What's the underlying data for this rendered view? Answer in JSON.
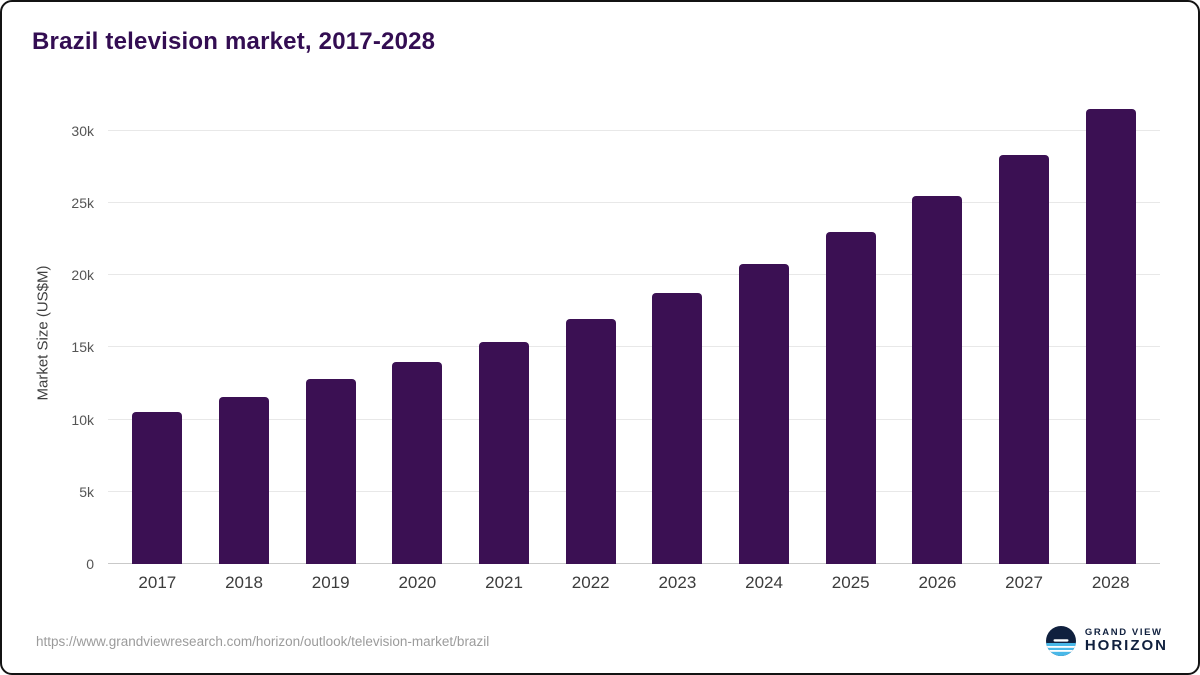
{
  "chart_data": {
    "type": "bar",
    "title": "Brazil television market, 2017-2028",
    "xlabel": "",
    "ylabel": "Market Size (US$M)",
    "categories": [
      "2017",
      "2018",
      "2019",
      "2020",
      "2021",
      "2022",
      "2023",
      "2024",
      "2025",
      "2026",
      "2027",
      "2028"
    ],
    "values": [
      10500,
      11600,
      12800,
      14000,
      15400,
      17000,
      18800,
      20800,
      23000,
      25500,
      28300,
      31500
    ],
    "ylim": [
      0,
      32000
    ],
    "yticks": [
      {
        "label": "0",
        "value": 0
      },
      {
        "label": "5k",
        "value": 5000
      },
      {
        "label": "10k",
        "value": 10000
      },
      {
        "label": "15k",
        "value": 15000
      },
      {
        "label": "20k",
        "value": 20000
      },
      {
        "label": "25k",
        "value": 25000
      },
      {
        "label": "30k",
        "value": 30000
      }
    ],
    "bar_color": "#3b1053",
    "grid": true,
    "legend": "none"
  },
  "footer": {
    "source_url": "https://www.grandviewresearch.com/horizon/outlook/television-market/brazil",
    "logo_line1": "GRAND VIEW",
    "logo_line2": "HORIZON"
  },
  "colors": {
    "title": "#330d52",
    "gridline": "#e8e8e8",
    "logo_navy": "#10203e",
    "logo_blue": "#49b8e8"
  }
}
